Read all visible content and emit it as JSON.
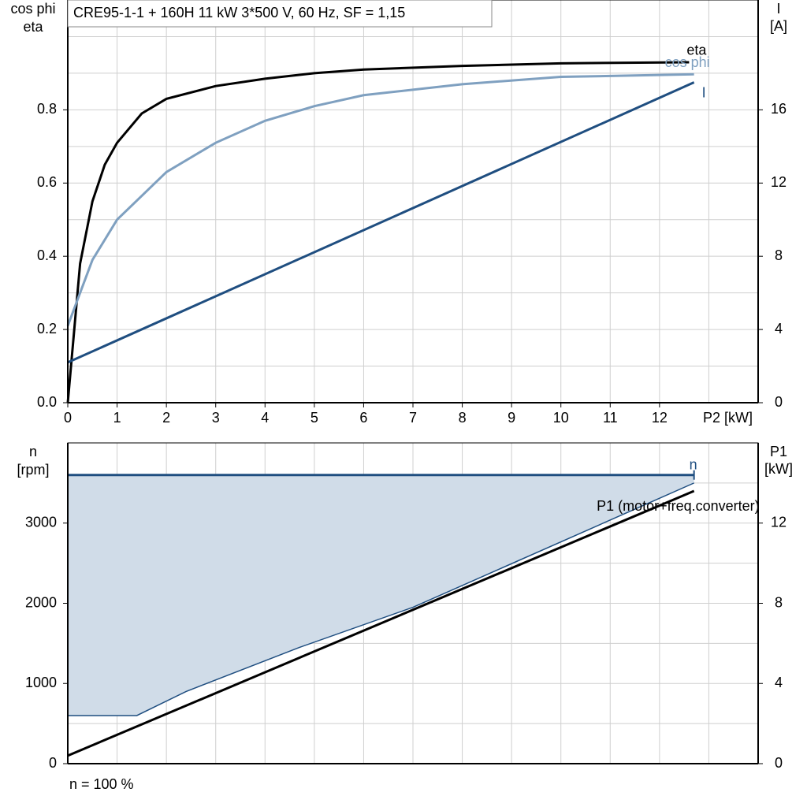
{
  "chart_data": [
    {
      "type": "line",
      "title": "CRE95-1-1 + 160H   11 kW   3*500 V, 60 Hz, SF = 1,15",
      "xlabel": "P2 [kW]",
      "ylabel": [
        "cos phi",
        "eta"
      ],
      "y2label": [
        "I",
        "[A]"
      ],
      "xlim": [
        0,
        14
      ],
      "xticks": [
        0,
        1,
        2,
        3,
        4,
        5,
        6,
        7,
        8,
        9,
        10,
        11,
        12
      ],
      "ylim": [
        0,
        1.1
      ],
      "yticks": [
        {
          "value": 0,
          "label": "0.0"
        },
        0.2,
        0.4,
        0.6,
        0.8
      ],
      "y2lim": [
        0,
        22
      ],
      "y2ticks": [
        0,
        4,
        8,
        12,
        16
      ],
      "grid": true,
      "series": [
        {
          "name": "eta",
          "color": "#000000",
          "x": [
            0,
            0.25,
            0.5,
            0.75,
            1,
            1.5,
            2,
            3,
            4,
            5,
            6,
            8,
            10,
            12.6
          ],
          "values": [
            0,
            0.38,
            0.55,
            0.65,
            0.71,
            0.79,
            0.83,
            0.865,
            0.885,
            0.9,
            0.91,
            0.92,
            0.927,
            0.93
          ]
        },
        {
          "name": "cos phi",
          "color": "#7fa0c0",
          "x": [
            0,
            0.5,
            1,
            2,
            3,
            4,
            5,
            6,
            8,
            10,
            12.7
          ],
          "values": [
            0.21,
            0.39,
            0.5,
            0.63,
            0.71,
            0.77,
            0.81,
            0.84,
            0.87,
            0.89,
            0.897
          ]
        },
        {
          "name": "I",
          "color": "#1f4e80",
          "axis": "y2",
          "x": [
            0,
            12.7
          ],
          "values": [
            2.2,
            17.5
          ]
        }
      ]
    },
    {
      "type": "line",
      "ylabel": [
        "n",
        "[rpm]"
      ],
      "y2label": [
        "P1",
        "[kW]"
      ],
      "annotation": "n = 100 %",
      "xlim": [
        0,
        14
      ],
      "ylim": [
        0,
        4000
      ],
      "yticks": [
        0,
        1000,
        2000,
        3000
      ],
      "y2lim": [
        0,
        16
      ],
      "y2ticks": [
        0,
        4,
        8,
        12
      ],
      "grid": true,
      "series": [
        {
          "name": "n",
          "color": "#1f4e80",
          "x": [
            0,
            12.7
          ],
          "values": [
            3600,
            3600
          ]
        },
        {
          "color": "#1f4e80",
          "fill": "#d0dce8",
          "x": [
            0,
            1.4,
            2.4,
            4.7,
            7,
            12.7
          ],
          "values": [
            600,
            600,
            900,
            1450,
            1950,
            3500
          ]
        },
        {
          "name": "P1 (motor+freq.converter)",
          "color": "#000000",
          "axis": "y2",
          "x": [
            0,
            12.7
          ],
          "values": [
            0.4,
            13.6
          ]
        }
      ]
    }
  ]
}
